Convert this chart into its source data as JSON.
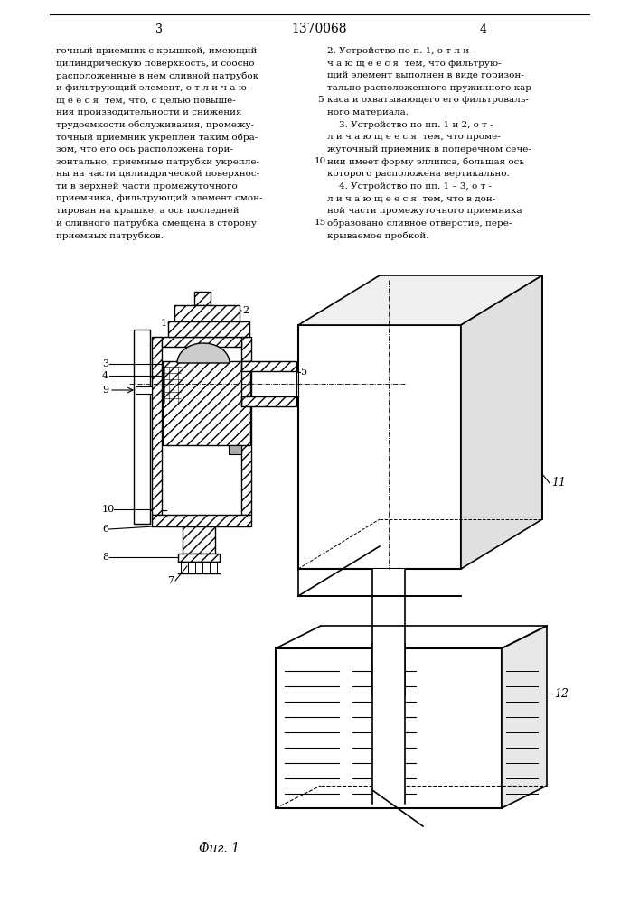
{
  "page_number_left": "3",
  "page_number_center": "1370068",
  "page_number_right": "4",
  "text_left_lines": [
    "гочный приемник с крышкой, имеющий",
    "цилиндрическую поверхность, и соосно",
    "расположенные в нем сливной патрубок",
    "и фильтрующий элемент, о т л и ч а ю -",
    "щ е е с я  тем, что, с целью повыше-",
    "ния производительности и снижения",
    "трудоемкости обслуживания, промежу-",
    "точный приемник укреплен таким обра-",
    "зом, что его ось расположена гори-",
    "зонтально, приемные патрубки укрепле-",
    "ны на части цилиндрической поверхнос-",
    "ти в верхней части промежуточного",
    "приемника, фильтрующий элемент смон-",
    "тирован на крышке, а ось последней",
    "и сливного патрубка смещена в сторону",
    "приемных патрубков."
  ],
  "text_right_lines": [
    "2. Устройство по п. 1, о т л и -",
    "ч а ю щ е е с я  тем, что фильтрую-",
    "щий элемент выполнен в виде горизон-",
    "тально расположенного пружинного кар-",
    "каса и охватывающего его фильтроваль-",
    "ного материала.",
    "    3. Устройство по пп. 1 и 2, о т -",
    "л и ч а ю щ е е с я  тем, что проме-",
    "жуточный приемник в поперечном сече-",
    "нии имеет форму эллипса, большая ось",
    "которого расположена вертикально.",
    "    4. Устройство по пп. 1 – 3, о т -",
    "л и ч а ю щ е е с я  тем, что в дон-",
    "ной части промежуточного приемника",
    "образовано сливное отверстие, пере-",
    "крываемое пробкой."
  ],
  "caption": "Фиг. 1",
  "bg": "#ffffff",
  "lc": "#000000"
}
